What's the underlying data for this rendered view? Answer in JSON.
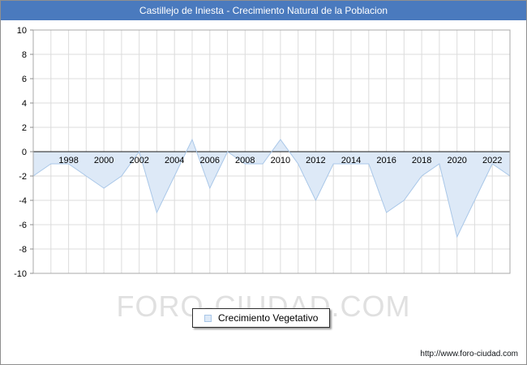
{
  "title": "Castillejo de Iniesta - Crecimiento Natural de la Poblacion",
  "watermark": "FORO-CIUDAD.COM",
  "legend": {
    "label": "Crecimiento Vegetativo"
  },
  "footer": {
    "url": "http://www.foro-ciudad.com"
  },
  "colors": {
    "title_bg": "#4a7abe",
    "title_text": "#ffffff",
    "area_fill": "#dde9f7",
    "area_stroke": "#a9c7e8",
    "grid": "#dcdcdc",
    "plot_border": "#a8a8a8",
    "axis_tick": "#8c8c8c",
    "zero_line": "#1a1a1a",
    "label_text": "#000000",
    "watermark": "#d6d6d6"
  },
  "chart_data": {
    "type": "area",
    "title": "Castillejo de Iniesta - Crecimiento Natural de la Poblacion",
    "series_name": "Crecimiento Vegetativo",
    "x": [
      1996,
      1997,
      1998,
      1999,
      2000,
      2001,
      2002,
      2003,
      2004,
      2005,
      2006,
      2007,
      2008,
      2009,
      2010,
      2011,
      2012,
      2013,
      2014,
      2015,
      2016,
      2017,
      2018,
      2019,
      2020,
      2021,
      2022,
      2023
    ],
    "values": [
      -2,
      -1,
      -1,
      -2,
      -3,
      -2,
      0,
      -5,
      -2,
      1,
      -3,
      0,
      -1,
      -1,
      1,
      -1,
      -4,
      -1,
      -1,
      -1,
      -5,
      -4,
      -2,
      -1,
      -7,
      -4,
      -1,
      -2
    ],
    "baseline": 0,
    "ylim": [
      -10,
      10
    ],
    "ytick_step": 2,
    "xtick_labels": [
      1998,
      2000,
      2002,
      2004,
      2006,
      2008,
      2010,
      2012,
      2014,
      2016,
      2018,
      2020,
      2022
    ],
    "grid": true,
    "legend_position": "bottom"
  }
}
